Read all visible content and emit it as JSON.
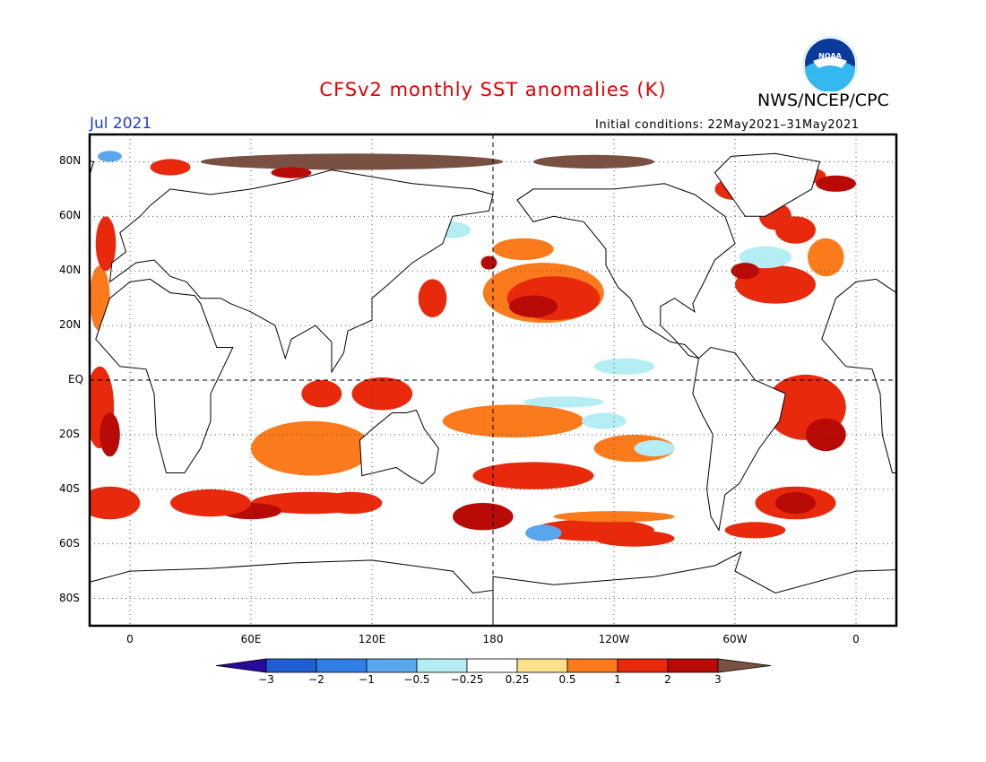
{
  "title": "CFSv2 monthly SST anomalies (K)",
  "agency": "NWS/NCEP/CPC",
  "logo_text": "NOAA",
  "valid_month": "Jul 2021",
  "initial_conditions": "Initial conditions: 22May2021–31May2021",
  "chart_data": {
    "type": "heatmap",
    "title": "CFSv2 monthly SST anomalies (K)",
    "units": "K",
    "lat_ticks": [
      "80N",
      "60N",
      "40N",
      "20N",
      "EQ",
      "20S",
      "40S",
      "60S",
      "80S"
    ],
    "lon_ticks": [
      "0",
      "60E",
      "120E",
      "180",
      "120W",
      "60W",
      "0"
    ],
    "lat_range": [
      -90,
      90
    ],
    "lon_range": [
      -20,
      380
    ],
    "grid": "dotted",
    "colorbar": {
      "ticks": [
        "−3",
        "−2",
        "−1",
        "−0.5",
        "−0.25",
        "0.25",
        "0.5",
        "1",
        "2",
        "3"
      ],
      "colors": [
        "#2a0a9a",
        "#1f5fd0",
        "#2f7fe6",
        "#5aa6ee",
        "#b4eef4",
        "#ffffff",
        "#fde08a",
        "#fb7a1c",
        "#e8290c",
        "#b80a06",
        "#7a5042"
      ]
    },
    "regions": [
      {
        "name": "North Pacific warm anomaly",
        "lat_center": 32,
        "lon_center": 200,
        "anomaly_K": 1.0
      },
      {
        "name": "Arctic warm anomaly",
        "lat_center": 78,
        "lon_center": 150,
        "anomaly_K": 3.0
      },
      {
        "name": "Southern Ocean warm band",
        "lat_center": -48,
        "lon_center": 250,
        "anomaly_K": 1.0
      },
      {
        "name": "South Atlantic warm anomaly",
        "lat_center": -45,
        "lon_center": 330,
        "anomaly_K": 2.0
      },
      {
        "name": "Eastern equatorial Pacific cool anomaly",
        "lat_center": -15,
        "lon_center": 240,
        "anomaly_K": -0.5
      },
      {
        "name": "South Indian Ocean warm anomaly",
        "lat_center": -45,
        "lon_center": 40,
        "anomaly_K": 1.0
      },
      {
        "name": "Indonesian seas warm anomaly",
        "lat_center": -5,
        "lon_center": 125,
        "anomaly_K": 1.0
      },
      {
        "name": "Southern Ocean cool patch",
        "lat_center": -55,
        "lon_center": 200,
        "anomaly_K": -1.0
      }
    ]
  }
}
